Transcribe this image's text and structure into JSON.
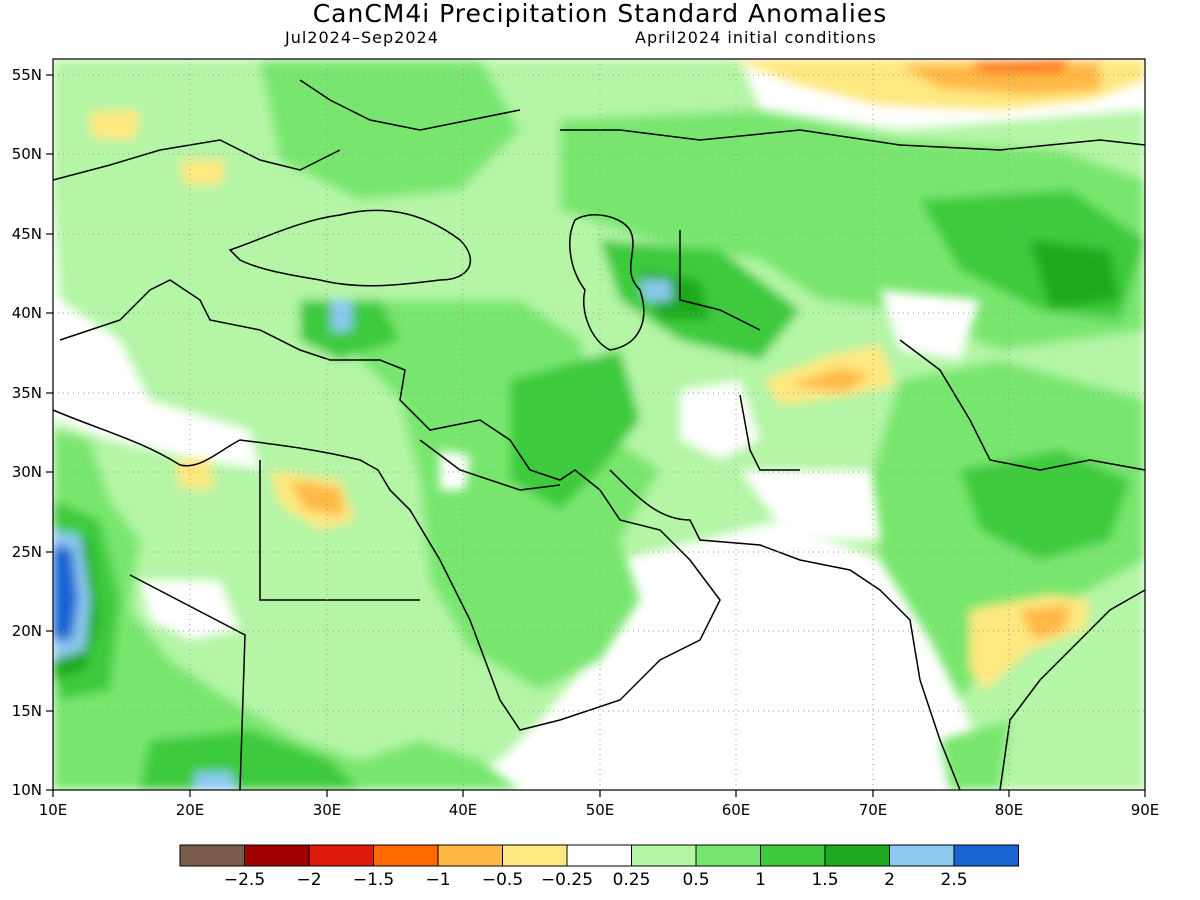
{
  "title": "CanCM4i Precipitation Standard Anomalies",
  "subtitle_left": "Jul2024–Sep2024",
  "subtitle_right": "April2024 initial conditions",
  "lon_labels": [
    "10E",
    "20E",
    "30E",
    "40E",
    "50E",
    "60E",
    "70E",
    "80E",
    "90E"
  ],
  "lat_labels": [
    "55N",
    "50N",
    "45N",
    "40N",
    "35N",
    "30N",
    "25N",
    "20N",
    "15N",
    "10N"
  ],
  "colorbar": {
    "colors": [
      "#7a5a4a",
      "#a00000",
      "#dd1c0c",
      "#ff6a00",
      "#ffb845",
      "#ffe880",
      "#ffffff",
      "#b4f5a6",
      "#78e66e",
      "#3cca3c",
      "#1eaa1e",
      "#8cc8f0",
      "#1864d2"
    ],
    "labels": [
      "−2.5",
      "−2",
      "−1.5",
      "−1",
      "−0.5",
      "−0.25",
      "0.25",
      "0.5",
      "1",
      "1.5",
      "2",
      "2.5"
    ]
  },
  "chart_data": {
    "type": "heatmap",
    "title": "CanCM4i Precipitation Standard Anomalies",
    "period": "Jul2024–Sep2024",
    "initial_conditions": "April2024 initial conditions",
    "x_range": [
      10,
      90
    ],
    "y_range": [
      10,
      56
    ],
    "x_ticks": [
      "10E",
      "20E",
      "30E",
      "40E",
      "50E",
      "60E",
      "70E",
      "80E",
      "90E"
    ],
    "y_ticks": [
      "55N",
      "50N",
      "45N",
      "40N",
      "35N",
      "30N",
      "25N",
      "20N",
      "15N",
      "10N"
    ],
    "levels": [
      -2.5,
      -2,
      -1.5,
      -1,
      -0.5,
      -0.25,
      0.25,
      0.5,
      1,
      1.5,
      2,
      2.5
    ]
  }
}
